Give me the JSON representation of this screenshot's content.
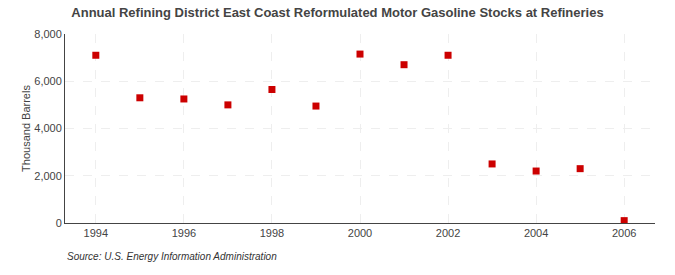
{
  "chart_data": {
    "type": "scatter",
    "title": "Annual Refining District East Coast Reformulated Motor Gasoline Stocks at Refineries",
    "y_label": "Thousand Barrels",
    "annotations": [
      "Source: U.S. Energy Information Administration"
    ],
    "x": [
      1994,
      1995,
      1996,
      1997,
      1998,
      1999,
      2000,
      2001,
      2002,
      2003,
      2004,
      2005,
      2006
    ],
    "values": [
      7100,
      5300,
      5250,
      5000,
      5650,
      4950,
      7150,
      6700,
      7100,
      2500,
      2200,
      2300,
      100
    ],
    "color": "#cc0000",
    "marker": "square",
    "xlim": [
      1993.3,
      2006.7
    ],
    "xticks": [
      1994,
      1996,
      1998,
      2000,
      2002,
      2004,
      2006
    ],
    "ylim": [
      0,
      8000
    ],
    "yticks": [
      0,
      {
        "value": 2000,
        "label": "2,000"
      },
      {
        "value": 4000,
        "label": "4,000"
      },
      {
        "value": 6000,
        "label": "6,000"
      },
      {
        "value": 8000,
        "label": "8,000"
      }
    ],
    "grid": true
  }
}
